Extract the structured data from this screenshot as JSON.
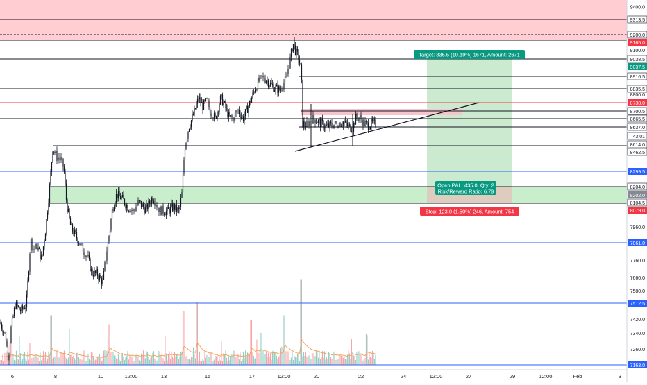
{
  "chart_data": {
    "type": "candlestick",
    "x_axis": {
      "tick_labels": [
        "6",
        "8",
        "10",
        "12:00",
        "13",
        "15",
        "17",
        "12:00",
        "20",
        "22",
        "24",
        "12:00",
        "27",
        "29",
        "12:00",
        "Feb",
        "3"
      ]
    },
    "y_axis": {
      "range": [
        7163,
        9400
      ],
      "tick_labels": [
        "9400.0",
        "9200.0",
        "9100.0",
        "8800.0",
        "7960.0",
        "7760.0",
        "7660.0",
        "7580.0",
        "7420.0",
        "7340.0",
        "7260.0"
      ],
      "level_badges": [
        {
          "label": "9313.5",
          "color": "#131722"
        },
        {
          "label": "9200.0",
          "color": "#131722"
        },
        {
          "label": "9165.0",
          "color": "#f23645"
        },
        {
          "label": "9038.5",
          "color": "#131722"
        },
        {
          "label": "9037.5",
          "color": "#089981"
        },
        {
          "label": "8916.5",
          "color": "#131722"
        },
        {
          "label": "8835.5",
          "color": "#131722"
        },
        {
          "label": "8738.0",
          "color": "#f23645"
        },
        {
          "label": "8700.5",
          "color": "#131722"
        },
        {
          "label": "8665.5",
          "color": "#131722"
        },
        {
          "label": "8637.0",
          "color": "#131722"
        },
        {
          "label": "43:01",
          "color": "#131722"
        },
        {
          "label": "8614.0",
          "color": "#131722"
        },
        {
          "label": "8462.5",
          "color": "#131722"
        },
        {
          "label": "8299.5",
          "color": "#2962ff"
        },
        {
          "label": "8204.0",
          "color": "#131722"
        },
        {
          "label": "8202.0",
          "color": "#868993"
        },
        {
          "label": "8104.5",
          "color": "#131722"
        },
        {
          "label": "8079.0",
          "color": "#f23645"
        },
        {
          "label": "7861.0",
          "color": "#2962ff"
        },
        {
          "label": "7512.5",
          "color": "#2962ff"
        },
        {
          "label": "7163.0",
          "color": "#2962ff"
        }
      ]
    },
    "labels": {
      "target": "Target: 835.5 (10.19%) 1671, Amount: 2671",
      "stop": "Stop: 123.0 (1.50%) 246, Amount: 754",
      "pnl_line1": "Open P&L: 435.0, Qty: 2",
      "pnl_line2": "Risk/Reward Ratio: 6.79"
    },
    "colors": {
      "up": "#089981",
      "down": "#f23645",
      "resistance_zone": "#ffcdd2",
      "support_zone": "#c8eecb",
      "blue_level": "#2962ff",
      "target_box": "#b7e1bc",
      "stop_box": "#e4c3ba",
      "volume_ma": "#f7a35c"
    },
    "price_path": [
      [
        0,
        7430
      ],
      [
        8,
        7350
      ],
      [
        12,
        7200
      ],
      [
        16,
        7390
      ],
      [
        22,
        7540
      ],
      [
        30,
        7500
      ],
      [
        38,
        7540
      ],
      [
        44,
        7940
      ],
      [
        48,
        7880
      ],
      [
        54,
        7900
      ],
      [
        60,
        7820
      ],
      [
        66,
        8020
      ],
      [
        72,
        8300
      ],
      [
        76,
        8520
      ],
      [
        82,
        8460
      ],
      [
        88,
        8440
      ],
      [
        92,
        8390
      ],
      [
        96,
        8170
      ],
      [
        102,
        8020
      ],
      [
        108,
        7980
      ],
      [
        114,
        7930
      ],
      [
        120,
        7880
      ],
      [
        126,
        7840
      ],
      [
        132,
        7740
      ],
      [
        140,
        7730
      ],
      [
        148,
        7680
      ],
      [
        154,
        7880
      ],
      [
        158,
        8000
      ],
      [
        162,
        8140
      ],
      [
        168,
        8230
      ],
      [
        176,
        8200
      ],
      [
        184,
        8150
      ],
      [
        192,
        8120
      ],
      [
        200,
        8180
      ],
      [
        210,
        8130
      ],
      [
        220,
        8210
      ],
      [
        230,
        8130
      ],
      [
        240,
        8120
      ],
      [
        250,
        8150
      ],
      [
        258,
        8120
      ],
      [
        262,
        8230
      ],
      [
        266,
        8520
      ],
      [
        272,
        8650
      ],
      [
        280,
        8740
      ],
      [
        286,
        8830
      ],
      [
        292,
        8780
      ],
      [
        298,
        8810
      ],
      [
        304,
        8740
      ],
      [
        310,
        8700
      ],
      [
        318,
        8830
      ],
      [
        324,
        8780
      ],
      [
        330,
        8710
      ],
      [
        336,
        8700
      ],
      [
        342,
        8760
      ],
      [
        350,
        8700
      ],
      [
        358,
        8780
      ],
      [
        366,
        8870
      ],
      [
        372,
        8930
      ],
      [
        380,
        8960
      ],
      [
        388,
        8920
      ],
      [
        396,
        8890
      ],
      [
        404,
        8880
      ],
      [
        412,
        8950
      ],
      [
        418,
        9070
      ],
      [
        422,
        9170
      ],
      [
        426,
        9120
      ],
      [
        430,
        9080
      ],
      [
        434,
        9000
      ],
      [
        436,
        8670
      ],
      [
        442,
        8660
      ],
      [
        450,
        8700
      ],
      [
        456,
        8690
      ],
      [
        462,
        8670
      ],
      [
        470,
        8650
      ],
      [
        478,
        8660
      ],
      [
        486,
        8670
      ],
      [
        494,
        8680
      ],
      [
        502,
        8650
      ],
      [
        508,
        8640
      ],
      [
        512,
        8700
      ],
      [
        518,
        8710
      ],
      [
        524,
        8670
      ],
      [
        530,
        8660
      ],
      [
        536,
        8670
      ],
      [
        542,
        8665
      ]
    ],
    "volume_spikes": [
      [
        434,
        0.95
      ],
      [
        74,
        0.55
      ],
      [
        264,
        0.6
      ],
      [
        284,
        0.7
      ],
      [
        362,
        0.5
      ],
      [
        410,
        0.55
      ],
      [
        100,
        0.4
      ],
      [
        158,
        0.45
      ],
      [
        16,
        0.35
      ]
    ]
  }
}
